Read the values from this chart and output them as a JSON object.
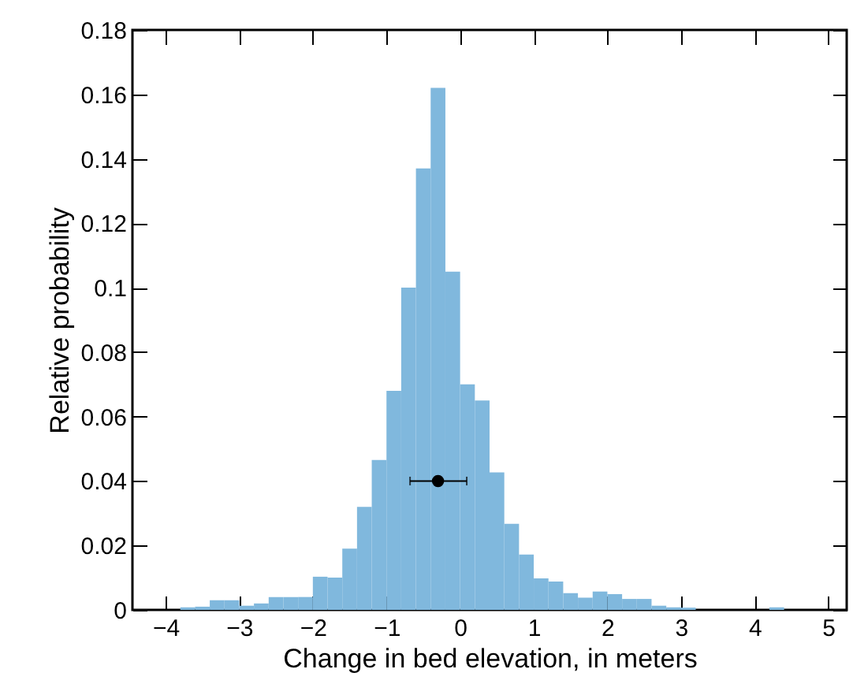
{
  "chart_data": {
    "type": "histogram",
    "xlabel": "Change in bed elevation, in meters",
    "ylabel": "Relative probability",
    "bins": [
      -3.8,
      -3.6,
      -3.4,
      -3.2,
      -3.0,
      -2.8,
      -2.6,
      -2.4,
      -2.2,
      -2.0,
      -1.8,
      -1.6,
      -1.4,
      -1.2,
      -1.0,
      -0.8,
      -0.6,
      -0.4,
      -0.2,
      0,
      0.2,
      0.4,
      0.6,
      0.8,
      1.0,
      1.2,
      1.4,
      1.6,
      1.8,
      2.0,
      2.2,
      2.4,
      2.6,
      2.8,
      3.0,
      3.2,
      3.4,
      3.6,
      3.8,
      4.0,
      4.2,
      4.4
    ],
    "series": [
      {
        "color": "#80b8dd",
        "values": [
          0.0008,
          0.001,
          0.003,
          0.003,
          0.0013,
          0.002,
          0.004,
          0.004,
          0.004,
          0.0103,
          0.01,
          0.019,
          0.032,
          0.0465,
          0.068,
          0.1,
          0.137,
          0.162,
          0.105,
          0.07,
          0.065,
          0.0427,
          0.0267,
          0.0172,
          0.0098,
          0.0088,
          0.0052,
          0.0038,
          0.0057,
          0.0049,
          0.0034,
          0.0034,
          0.0013,
          0.0008,
          0.0007,
          0,
          0,
          0,
          0,
          0,
          0.0008
        ]
      },
      {
        "type": "scatter",
        "color": "#000000",
        "x": [
          -0.3
        ],
        "values": [
          0.04
        ],
        "xerrors": [
          [
            -0.68,
            0.09
          ]
        ]
      }
    ],
    "xlim": [
      -4.45,
      5.25
    ],
    "ylim": [
      0,
      0.18
    ],
    "xticks": [
      -4,
      -3,
      -2,
      -1,
      0,
      1,
      2,
      3,
      4,
      5
    ],
    "yticks": [
      0,
      0.02,
      0.04,
      0.06,
      0.08,
      0.1,
      0.12,
      0.14,
      0.16,
      0.18
    ],
    "grid": false,
    "marker": "circle"
  }
}
